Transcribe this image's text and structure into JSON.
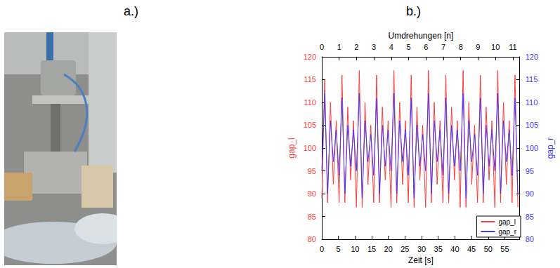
{
  "panel_labels": [
    "a.)",
    "b.)"
  ],
  "chart_data": {
    "type": "line",
    "xlabel": "Zeit [s]",
    "x2label": "Umdrehungen [n]",
    "ylabel": "gap_l",
    "y2label": "gap_r",
    "xlim": [
      0,
      59.5
    ],
    "xticks": [
      0,
      5,
      10,
      15,
      20,
      25,
      30,
      35,
      40,
      45,
      50,
      55
    ],
    "x2lim": [
      0,
      11.4
    ],
    "x2ticks": [
      0,
      1,
      2,
      3,
      4,
      5,
      6,
      7,
      8,
      9,
      10,
      11
    ],
    "ylim": [
      80,
      120
    ],
    "yticks": [
      80,
      85,
      90,
      95,
      100,
      105,
      110,
      115,
      120
    ],
    "y2lim": [
      80,
      120
    ],
    "y2ticks": [
      80,
      85,
      90,
      95,
      100,
      105,
      110,
      115,
      120
    ],
    "grid": false,
    "legend": "lower right",
    "x": [
      0,
      0.87,
      1.73,
      2.6,
      3.47,
      4.33,
      5.2,
      6.07,
      6.93,
      7.8,
      8.67,
      9.53,
      10.4,
      11.27,
      12.13,
      13,
      13.87,
      14.73,
      15.6,
      16.47,
      17.33,
      18.2,
      19.07,
      19.93,
      20.8,
      21.67,
      22.53,
      23.4,
      24.27,
      25.13,
      26,
      26.87,
      27.73,
      28.6,
      29.47,
      30.33,
      31.2,
      32.07,
      32.93,
      33.8,
      34.67,
      35.53,
      36.4,
      37.27,
      38.13,
      39,
      39.87,
      40.73,
      41.6,
      42.47,
      43.33,
      44.2,
      45.07,
      45.93,
      46.8,
      47.67,
      48.53,
      49.4,
      50.27,
      51.13,
      52,
      52.87,
      53.73,
      54.6,
      55.47,
      56.33,
      57.2,
      58.07,
      58.93
    ],
    "series": [
      {
        "name": "gap_l",
        "color": "#ff3b3b",
        "values": [
          89,
          115,
          88,
          110,
          92,
          106,
          88,
          116,
          88,
          109,
          93,
          106,
          87,
          117,
          87,
          110,
          92,
          105,
          88,
          116,
          88,
          109,
          93,
          106,
          87,
          117,
          88,
          110,
          92,
          106,
          88,
          116,
          87,
          109,
          93,
          105,
          87,
          117,
          88,
          110,
          92,
          106,
          88,
          116,
          88,
          109,
          93,
          106,
          87,
          117,
          87,
          110,
          92,
          105,
          88,
          116,
          88,
          109,
          93,
          106,
          87,
          117,
          88,
          110,
          92,
          106,
          88,
          116,
          87
        ]
      },
      {
        "name": "gap_r",
        "color": "#3b3bff",
        "axis": "y2",
        "values": [
          95,
          112,
          90,
          106,
          97,
          104,
          94,
          111,
          90,
          105,
          96,
          104,
          95,
          112,
          89,
          106,
          97,
          103,
          94,
          111,
          90,
          105,
          96,
          104,
          95,
          112,
          90,
          106,
          97,
          104,
          94,
          111,
          89,
          105,
          96,
          103,
          95,
          112,
          90,
          106,
          97,
          104,
          94,
          111,
          90,
          105,
          96,
          104,
          95,
          112,
          89,
          106,
          97,
          103,
          94,
          111,
          90,
          105,
          96,
          104,
          95,
          112,
          90,
          106,
          97,
          104,
          94,
          111,
          90
        ]
      }
    ]
  }
}
